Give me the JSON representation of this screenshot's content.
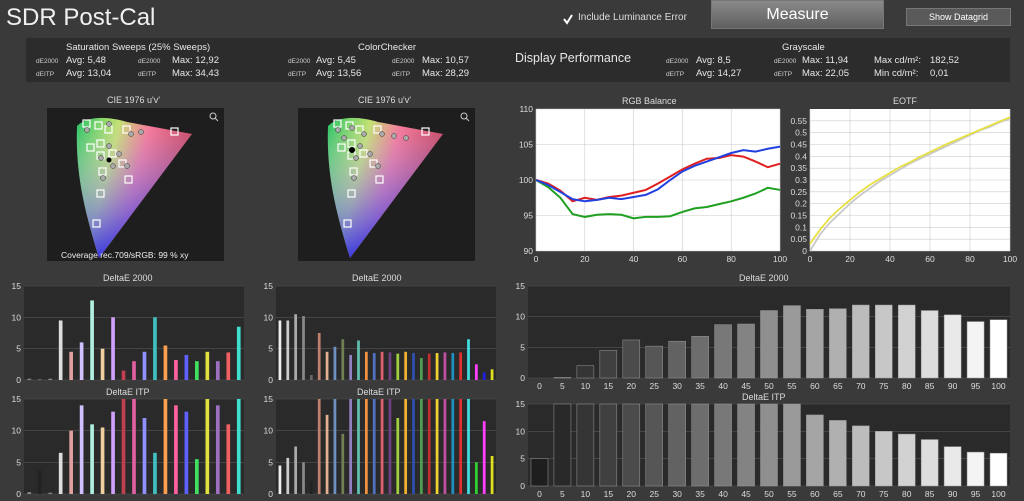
{
  "title": "SDR Post-Cal",
  "include_luminance": {
    "label": "Include Luminance Error",
    "checked": true
  },
  "measure_label": "Measure",
  "datagrid_label": "Show Datagrid",
  "stats": {
    "sat": {
      "title": "Saturation Sweeps (25% Sweeps)",
      "de2000": "dE2000",
      "deitp": "dEITP",
      "avg_de": "Avg: 5,48",
      "avg_itp": "Avg: 13,04",
      "max_de": "Max: 12,92",
      "max_itp": "Max: 34,43"
    },
    "cc": {
      "title": "ColorChecker",
      "de2000": "dE2000",
      "deitp": "dEITP",
      "avg_de": "Avg: 5,45",
      "avg_itp": "Avg: 13,56",
      "max_de": "Max: 10,57",
      "max_itp": "Max: 28,29"
    },
    "display_perf": "Display Performance",
    "gs": {
      "title": "Grayscale",
      "de2000": "dE2000",
      "deitp": "dEITP",
      "avg_de": "Avg: 8,5",
      "avg_itp": "Avg: 14,27",
      "max_de": "Max: 11,94",
      "max_itp": "Max: 22,05",
      "maxcd_label": "Max cd/m²:",
      "maxcd": "182,52",
      "mincd_label": "Min cd/m²:",
      "mincd": "0,01"
    }
  },
  "cie": {
    "left_title": "CIE 1976 u'v'",
    "right_title": "CIE 1976 u'v'",
    "coverage": "Coverage rec.709/sRGB:  99 % xy"
  },
  "icons": {
    "zoom": "magnifier-icon",
    "check": "check-icon"
  },
  "colors": {
    "red": "#e02020",
    "green": "#20a020",
    "blue": "#2040e0",
    "eotf_ref": "#c8c8c8",
    "eotf_meas": "#e8e040",
    "bar_bg": "#2a2a2a"
  },
  "rgb_balance": {
    "title": "RGB Balance",
    "type": "line",
    "ylim": [
      90,
      110
    ],
    "xlim": [
      0,
      100
    ],
    "yticks": [
      "90",
      "95",
      "100",
      "105",
      "110"
    ],
    "xticks": [
      "0",
      "20",
      "40",
      "60",
      "80",
      "100"
    ],
    "x": [
      0,
      5,
      10,
      15,
      20,
      25,
      30,
      35,
      40,
      45,
      50,
      55,
      60,
      65,
      70,
      75,
      80,
      85,
      90,
      95,
      100
    ],
    "series": [
      {
        "color": "red",
        "values": [
          100,
          99.5,
          98.5,
          97,
          97.5,
          97.2,
          97.6,
          97.8,
          98.2,
          98.6,
          99.5,
          100.5,
          101.5,
          102.3,
          103,
          103.1,
          103.5,
          103.3,
          102.6,
          101.8,
          102.3
        ]
      },
      {
        "color": "green",
        "values": [
          100,
          99,
          97.5,
          95.2,
          94.8,
          95.1,
          95.2,
          95.1,
          94.6,
          94.8,
          94.8,
          94.9,
          95.5,
          96,
          96.2,
          96.6,
          97,
          97.5,
          98.1,
          98.9,
          98.6
        ]
      },
      {
        "color": "blue",
        "values": [
          100,
          99.3,
          98.3,
          97.3,
          97,
          97.2,
          97.5,
          97.3,
          97.6,
          97.9,
          98.7,
          100,
          101.2,
          102,
          102.6,
          103.2,
          103.8,
          104.2,
          104,
          104.4,
          104.7
        ]
      }
    ]
  },
  "eotf": {
    "title": "EOTF",
    "type": "line",
    "ylim": [
      0,
      0.6
    ],
    "xlim": [
      0,
      100
    ],
    "yticks": [
      "0",
      "0.05",
      "0.1",
      "0.15",
      "0.2",
      "0.25",
      "0.3",
      "0.35",
      "0.4",
      "0.45",
      "0.5",
      "0.55"
    ],
    "xticks": [
      "0",
      "20",
      "40",
      "60",
      "80",
      "100"
    ],
    "x": [
      0,
      5,
      10,
      15,
      20,
      25,
      30,
      35,
      40,
      45,
      50,
      55,
      60,
      65,
      70,
      75,
      80,
      85,
      90,
      95,
      100
    ],
    "series": [
      {
        "name": "",
        "color": "eotf_ref",
        "values": [
          0,
          0.07,
          0.12,
          0.16,
          0.2,
          0.235,
          0.265,
          0.295,
          0.32,
          0.345,
          0.37,
          0.39,
          0.41,
          0.43,
          0.45,
          0.47,
          0.49,
          0.51,
          0.525,
          0.545,
          0.56
        ]
      },
      {
        "name": "",
        "color": "eotf_meas",
        "values": [
          0.03,
          0.09,
          0.14,
          0.18,
          0.215,
          0.25,
          0.28,
          0.305,
          0.33,
          0.355,
          0.375,
          0.398,
          0.418,
          0.438,
          0.458,
          0.476,
          0.494,
          0.512,
          0.53,
          0.548,
          0.565
        ]
      }
    ]
  },
  "bar_panels": {
    "yticks": [
      "0",
      "5",
      "10",
      "15"
    ],
    "sat_de": {
      "title": "DeltaE 2000",
      "bars": [
        {
          "c": "#888",
          "v": 0.2
        },
        {
          "c": "#888",
          "v": 0.1
        },
        {
          "c": "#888",
          "v": 0.2
        },
        {
          "c": "#ddd",
          "v": 9.5
        },
        {
          "c": "#e0a0a0",
          "v": 4.5
        },
        {
          "c": "#d0c0ff",
          "v": 6
        },
        {
          "c": "#b0f0e0",
          "v": 12.7
        },
        {
          "c": "#f0d0a0",
          "v": 5
        },
        {
          "c": "#d0a0ff",
          "v": 10
        },
        {
          "c": "#c04050",
          "v": 1.5
        },
        {
          "c": "#e060a0",
          "v": 3
        },
        {
          "c": "#9090ff",
          "v": 4.5
        },
        {
          "c": "#40c0c0",
          "v": 10
        },
        {
          "c": "#ffa050",
          "v": 5.5
        },
        {
          "c": "#ff60a0",
          "v": 3.2
        },
        {
          "c": "#6060ff",
          "v": 4
        },
        {
          "c": "#40e060",
          "v": 3
        },
        {
          "c": "#e0e040",
          "v": 4.5
        },
        {
          "c": "#a070c0",
          "v": 3
        },
        {
          "c": "#f06060",
          "v": 4.4
        },
        {
          "c": "#40e0d0",
          "v": 8.5
        }
      ]
    },
    "sat_itp": {
      "title": "DeltaE ITP",
      "bars": [
        {
          "c": "#888",
          "v": 0.3
        },
        {
          "c": "#222",
          "v": 3.7
        },
        {
          "c": "#888",
          "v": 0.2
        },
        {
          "c": "#ddd",
          "v": 6.5
        },
        {
          "c": "#e0a0a0",
          "v": 10
        },
        {
          "c": "#d0c0ff",
          "v": 14
        },
        {
          "c": "#b0f0e0",
          "v": 11
        },
        {
          "c": "#f0d0a0",
          "v": 10.5
        },
        {
          "c": "#d0a0ff",
          "v": 13
        },
        {
          "c": "#c04050",
          "v": 15
        },
        {
          "c": "#e060a0",
          "v": 15
        },
        {
          "c": "#9090ff",
          "v": 12
        },
        {
          "c": "#40c0c0",
          "v": 6.5
        },
        {
          "c": "#ffa050",
          "v": 15
        },
        {
          "c": "#ff60a0",
          "v": 14
        },
        {
          "c": "#6060ff",
          "v": 13
        },
        {
          "c": "#40e060",
          "v": 5.5
        },
        {
          "c": "#e0e040",
          "v": 15
        },
        {
          "c": "#a070c0",
          "v": 14
        },
        {
          "c": "#f06060",
          "v": 11
        },
        {
          "c": "#40e0d0",
          "v": 15
        }
      ]
    },
    "cc_de": {
      "title": "DeltaE 2000",
      "bars": [
        {
          "c": "#eee",
          "v": 9.5
        },
        {
          "c": "#ccc",
          "v": 9.5
        },
        {
          "c": "#aaa",
          "v": 10.5
        },
        {
          "c": "#888",
          "v": 10.2
        },
        {
          "c": "#666",
          "v": 0.8
        },
        {
          "c": "#c08070",
          "v": 7.5
        },
        {
          "c": "#e0b090",
          "v": 4.5
        },
        {
          "c": "#7090c0",
          "v": 5.3
        },
        {
          "c": "#708050",
          "v": 6.5
        },
        {
          "c": "#9080c0",
          "v": 4
        },
        {
          "c": "#60c0b0",
          "v": 6.3
        },
        {
          "c": "#f09040",
          "v": 4.5
        },
        {
          "c": "#5070c0",
          "v": 4.3
        },
        {
          "c": "#e06070",
          "v": 4.5
        },
        {
          "c": "#704080",
          "v": 4.4
        },
        {
          "c": "#a0d040",
          "v": 4.2
        },
        {
          "c": "#f0b030",
          "v": 4.5
        },
        {
          "c": "#3050b0",
          "v": 4.3
        },
        {
          "c": "#50a050",
          "v": 3.5
        },
        {
          "c": "#c03030",
          "v": 4.2
        },
        {
          "c": "#f0d030",
          "v": 4.3
        },
        {
          "c": "#c050a0",
          "v": 4.4
        },
        {
          "c": "#2090c0",
          "v": 4.3
        },
        {
          "c": "#e03030",
          "v": 4.4
        },
        {
          "c": "#40e0e0",
          "v": 6.5
        },
        {
          "c": "#ff40ff",
          "v": 2.5
        },
        {
          "c": "#2020e0",
          "v": 1.2
        },
        {
          "c": "#e0e020",
          "v": 1.7
        }
      ]
    },
    "cc_itp": {
      "title": "DeltaE ITP",
      "bars": [
        {
          "c": "#eee",
          "v": 4.5
        },
        {
          "c": "#ccc",
          "v": 5.7
        },
        {
          "c": "#aaa",
          "v": 7.5
        },
        {
          "c": "#888",
          "v": 5
        },
        {
          "c": "#222",
          "v": 2
        },
        {
          "c": "#c08070",
          "v": 15
        },
        {
          "c": "#e0b090",
          "v": 12.5
        },
        {
          "c": "#7090c0",
          "v": 15
        },
        {
          "c": "#708050",
          "v": 9.5
        },
        {
          "c": "#9080c0",
          "v": 15
        },
        {
          "c": "#60c0b0",
          "v": 15
        },
        {
          "c": "#f09040",
          "v": 15
        },
        {
          "c": "#5070c0",
          "v": 15
        },
        {
          "c": "#e06070",
          "v": 15
        },
        {
          "c": "#704080",
          "v": 15
        },
        {
          "c": "#a0d040",
          "v": 12
        },
        {
          "c": "#f0b030",
          "v": 15
        },
        {
          "c": "#3050b0",
          "v": 15
        },
        {
          "c": "#50a050",
          "v": 15
        },
        {
          "c": "#c03030",
          "v": 15
        },
        {
          "c": "#f0d030",
          "v": 15
        },
        {
          "c": "#c050a0",
          "v": 15
        },
        {
          "c": "#2090c0",
          "v": 15
        },
        {
          "c": "#e03030",
          "v": 15
        },
        {
          "c": "#40e0e0",
          "v": 15
        },
        {
          "c": "#30d030",
          "v": 5
        },
        {
          "c": "#ff40ff",
          "v": 11.5
        },
        {
          "c": "#e0e020",
          "v": 6
        }
      ]
    },
    "gs_de": {
      "title": "DeltaE 2000",
      "labels": [
        "0",
        "5",
        "10",
        "15",
        "20",
        "25",
        "30",
        "35",
        "40",
        "45",
        "50",
        "55",
        "60",
        "65",
        "70",
        "75",
        "80",
        "85",
        "90",
        "95",
        "100"
      ],
      "values": [
        0,
        0.1,
        2,
        4.5,
        6.2,
        5.2,
        6,
        6.8,
        8.7,
        8.8,
        11,
        11.8,
        11.2,
        11.3,
        11.9,
        11.9,
        11.9,
        11,
        10.3,
        9.2,
        9.5
      ]
    },
    "gs_itp": {
      "title": "DeltaE ITP",
      "labels": [
        "0",
        "5",
        "10",
        "15",
        "20",
        "25",
        "30",
        "35",
        "40",
        "45",
        "50",
        "55",
        "60",
        "65",
        "70",
        "75",
        "80",
        "85",
        "90",
        "95",
        "100"
      ],
      "values": [
        5,
        15,
        15,
        15,
        15,
        15,
        15,
        15,
        15,
        15,
        15,
        15,
        13,
        12,
        11,
        10,
        9.5,
        8.5,
        7.2,
        6.2,
        6
      ]
    }
  }
}
